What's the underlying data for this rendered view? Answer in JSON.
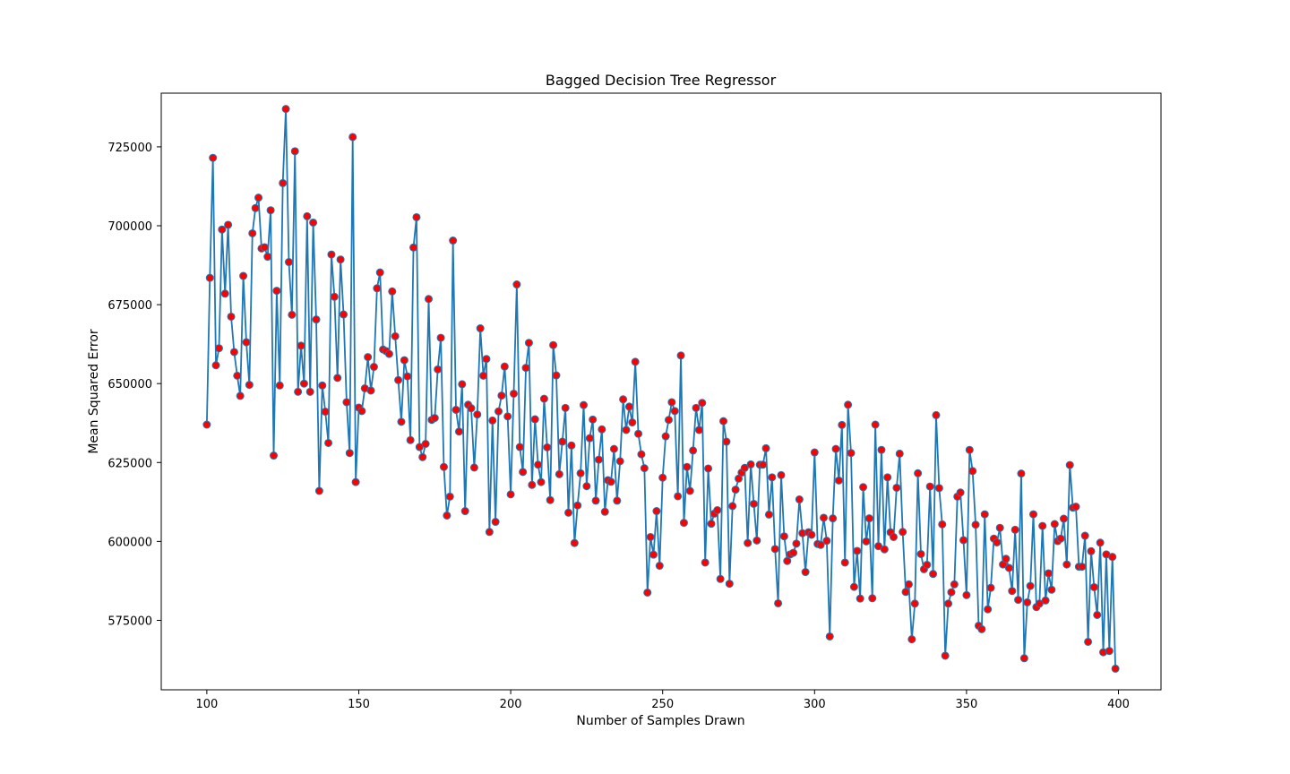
{
  "chart_data": {
    "type": "line",
    "title": "Bagged Decision Tree Regressor",
    "xlabel": "Number of Samples Drawn",
    "ylabel": "Mean Squared Error",
    "xlim": [
      85,
      414
    ],
    "ylim": [
      553000,
      742000
    ],
    "xticks": [
      100,
      150,
      200,
      250,
      300,
      350,
      400
    ],
    "yticks": [
      575000,
      600000,
      625000,
      650000,
      675000,
      700000,
      725000
    ],
    "grid": false,
    "line_color": "#1f77b4",
    "marker_face_color": "#ff0000",
    "marker_edge_color": "#1f77b4",
    "series": [
      {
        "x_start": 100,
        "x_step": 1,
        "values": [
          637000,
          683500,
          721500,
          655800,
          661200,
          698800,
          678500,
          700300,
          671200,
          660000,
          652500,
          646100,
          684100,
          663100,
          649600,
          697600,
          705600,
          708900,
          692800,
          693200,
          690200,
          704900,
          627200,
          679400,
          649400,
          713500,
          737000,
          688500,
          671800,
          723600,
          647400,
          662000,
          650000,
          703000,
          647400,
          701000,
          670300,
          616000,
          649400,
          641100,
          631200,
          690900,
          677500,
          651800,
          689300,
          671900,
          644100,
          628000,
          728100,
          618800,
          642400,
          641300,
          648500,
          658400,
          647800,
          655300,
          680200,
          685200,
          660800,
          660300,
          659400,
          679200,
          665000,
          651100,
          637900,
          657400,
          652300,
          632100,
          693100,
          702700,
          629900,
          626700,
          630900,
          676800,
          638500,
          639100,
          654500,
          664500,
          623600,
          608200,
          614200,
          695300,
          641700,
          634800,
          649800,
          609600,
          643300,
          642200,
          623400,
          640200,
          667500,
          652500,
          657800,
          603000,
          638300,
          606200,
          641200,
          646200,
          655400,
          639600,
          614900,
          646800,
          681400,
          629900,
          622000,
          655000,
          662900,
          617900,
          638700,
          624300,
          618800,
          645200,
          629800,
          613100,
          662200,
          652600,
          621300,
          631600,
          642300,
          609100,
          630400,
          599500,
          611400,
          621600,
          643200,
          617500,
          632700,
          638600,
          612900,
          625900,
          635500,
          609400,
          619400,
          618900,
          629300,
          612900,
          625400,
          645000,
          635300,
          642700,
          637700,
          656900,
          634100,
          627600,
          623200,
          583800,
          601400,
          595800,
          609600,
          592300,
          620200,
          633300,
          638500,
          644100,
          641300,
          614300,
          658900,
          605900,
          623600,
          616000,
          628800,
          642300,
          635300,
          643900,
          593300,
          623100,
          605600,
          608800,
          609900,
          588100,
          638100,
          631600,
          586600,
          611200,
          616400,
          619900,
          621800,
          623300,
          599500,
          624400,
          611900,
          600300,
          624300,
          624300,
          629500,
          608500,
          620300,
          597600,
          580400,
          621000,
          601600,
          593800,
          595900,
          596400,
          599300,
          613300,
          602600,
          590300,
          602900,
          602100,
          628200,
          599200,
          598900,
          607500,
          600200,
          569900,
          607300,
          629300,
          619300,
          636900,
          593300,
          643300,
          628000,
          585600,
          597000,
          581900,
          617200,
          600000,
          607300,
          582000,
          637000,
          598500,
          629000,
          597500,
          620300,
          602900,
          601400,
          617000,
          627800,
          603000,
          584000,
          586400,
          569000,
          580300,
          621600,
          596000,
          591200,
          592600,
          617400,
          589700,
          640000,
          616900,
          605400,
          563800,
          580300,
          583900,
          586400,
          614200,
          615500,
          600400,
          583000,
          629000,
          622300,
          605300,
          573300,
          572200,
          608600,
          578500,
          585300,
          600900,
          599700,
          604300,
          592700,
          594500,
          591600,
          584300,
          603700,
          581500,
          621500,
          563000,
          580700,
          585900,
          608600,
          579200,
          580300,
          604900,
          581300,
          589900,
          584700,
          605500,
          600100,
          600900,
          607200,
          592700,
          624200,
          610700,
          611000,
          592000,
          592000,
          601800,
          568200,
          596900,
          585500,
          576700,
          599600,
          564900,
          595900,
          565300,
          595100,
          559700
        ]
      }
    ]
  }
}
